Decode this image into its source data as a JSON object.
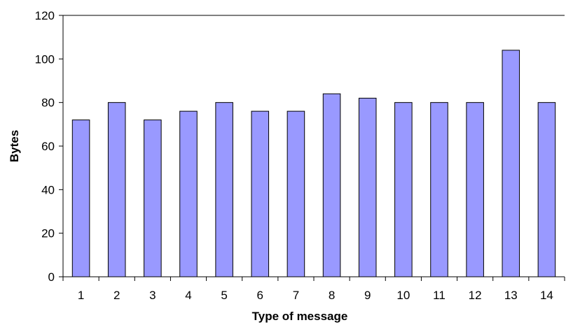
{
  "chart_data": {
    "type": "bar",
    "title": "",
    "xlabel": "Type of message",
    "ylabel": "Bytes",
    "categories": [
      "1",
      "2",
      "3",
      "4",
      "5",
      "6",
      "7",
      "8",
      "9",
      "10",
      "11",
      "12",
      "13",
      "14"
    ],
    "values": [
      72,
      80,
      72,
      76,
      80,
      76,
      76,
      84,
      82,
      80,
      80,
      80,
      104,
      80
    ],
    "ylim": [
      0,
      120
    ],
    "yticks": [
      0,
      20,
      40,
      60,
      80,
      100,
      120
    ],
    "grid": false,
    "legend": "none",
    "bar_color": "#9999ff",
    "bar_edge_color": "#000000"
  }
}
